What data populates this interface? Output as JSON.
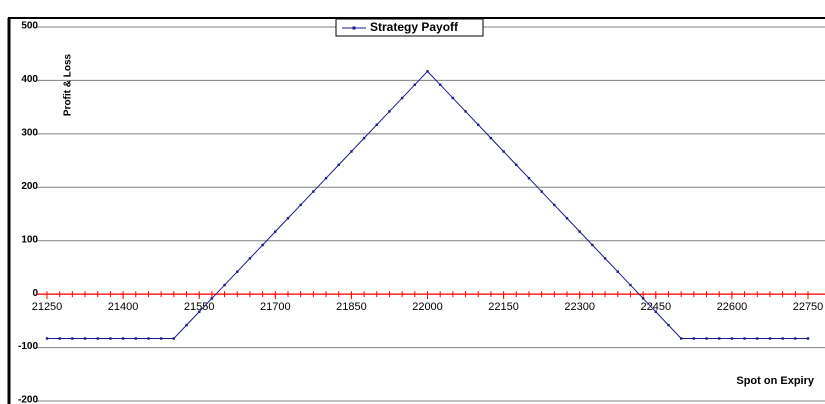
{
  "chart_data": {
    "type": "line",
    "legend_title": "Strategy Payoff",
    "ylabel": "Profit & Loss",
    "xlabel": "Spot on Expiry",
    "x": [
      21250,
      21275,
      21300,
      21325,
      21350,
      21375,
      21400,
      21425,
      21450,
      21475,
      21500,
      21525,
      21550,
      21575,
      21600,
      21625,
      21650,
      21675,
      21700,
      21725,
      21750,
      21775,
      21800,
      21825,
      21850,
      21875,
      21900,
      21925,
      21950,
      21975,
      22000,
      22025,
      22050,
      22075,
      22100,
      22125,
      22150,
      22175,
      22200,
      22225,
      22250,
      22275,
      22300,
      22325,
      22350,
      22375,
      22400,
      22425,
      22450,
      22475,
      22500,
      22525,
      22550,
      22575,
      22600,
      22625,
      22650,
      22675,
      22700,
      22725,
      22750
    ],
    "series": [
      {
        "name": "Strategy Payoff",
        "color": "#1a1a8c",
        "values": [
          -83,
          -83,
          -83,
          -83,
          -83,
          -83,
          -83,
          -83,
          -83,
          -83,
          -83,
          -58,
          -33,
          -8,
          17,
          42,
          67,
          92,
          117,
          142,
          167,
          192,
          217,
          242,
          267,
          292,
          317,
          342,
          367,
          392,
          417,
          392,
          367,
          342,
          317,
          292,
          267,
          242,
          217,
          192,
          167,
          142,
          117,
          92,
          67,
          42,
          17,
          -8,
          -33,
          -58,
          -83,
          -83,
          -83,
          -83,
          -83,
          -83,
          -83,
          -83,
          -83,
          -83,
          -83
        ]
      }
    ],
    "xlim": [
      21250,
      22750
    ],
    "xticks": [
      21250,
      21400,
      21550,
      21700,
      21850,
      22000,
      22150,
      22300,
      22450,
      22600,
      22750
    ],
    "ylim": [
      -200,
      500
    ],
    "yticks": [
      -200,
      -100,
      0,
      100,
      200,
      300,
      400,
      500
    ],
    "grid": true,
    "zero_line_color": "#ff0000"
  }
}
